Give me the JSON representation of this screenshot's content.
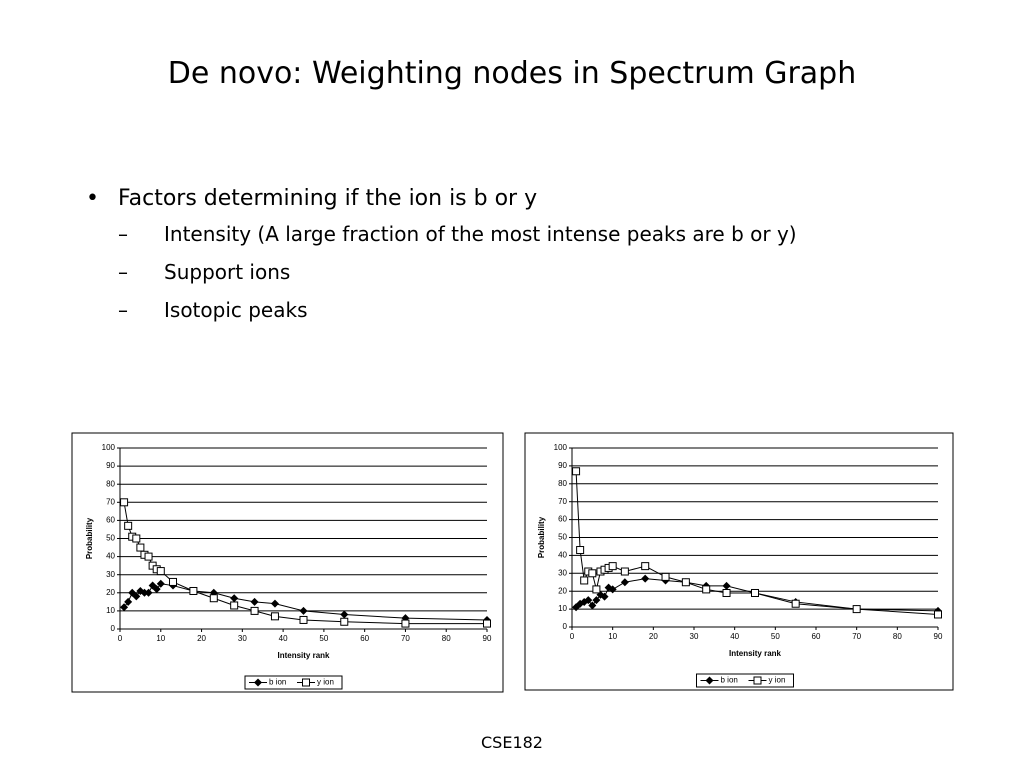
{
  "title": "De novo: Weighting nodes in Spectrum Graph",
  "bullets": [
    {
      "text": "Factors determining if the ion is b or y",
      "subitems": [
        "Intensity (A large fraction of the most intense peaks are b or y)",
        "Support ions",
        "Isotopic peaks"
      ]
    }
  ],
  "footer": "CSE182",
  "chart_data": [
    {
      "type": "line",
      "xlabel": "Intensity rank",
      "ylabel": "Probability",
      "x": [
        1,
        2,
        3,
        4,
        5,
        6,
        7,
        8,
        9,
        10,
        13,
        18,
        23,
        28,
        33,
        38,
        45,
        55,
        70,
        90
      ],
      "series": [
        {
          "name": "b ion",
          "color": "#000000",
          "marker": "diamond",
          "values": [
            12,
            15,
            20,
            18,
            21,
            20,
            20,
            24,
            22,
            25,
            24,
            21,
            20,
            17,
            15,
            14,
            10,
            8,
            6,
            5
          ]
        },
        {
          "name": "y ion",
          "color": "#000000",
          "marker": "square",
          "values": [
            70,
            57,
            51,
            50,
            45,
            41,
            40,
            35,
            33,
            32,
            26,
            21,
            17,
            13,
            10,
            7,
            5,
            4,
            3,
            3
          ]
        }
      ],
      "xlim": [
        0,
        90
      ],
      "xticks": [
        0,
        10,
        20,
        30,
        40,
        50,
        60,
        70,
        80,
        90
      ],
      "ylim": [
        0,
        100
      ],
      "yticks": [
        0,
        10,
        20,
        30,
        40,
        50,
        60,
        70,
        80,
        90,
        100
      ],
      "grid": true,
      "legend": "bottom"
    },
    {
      "type": "line",
      "xlabel": "Intensity rank",
      "ylabel": "Probability",
      "x": [
        1,
        2,
        3,
        4,
        5,
        6,
        7,
        8,
        9,
        10,
        13,
        18,
        23,
        28,
        33,
        38,
        45,
        55,
        70,
        90
      ],
      "series": [
        {
          "name": "b ion",
          "color": "#000000",
          "marker": "diamond",
          "values": [
            11,
            13,
            14,
            15,
            12,
            15,
            18,
            17,
            22,
            21,
            25,
            27,
            26,
            25,
            23,
            23,
            19,
            14,
            10,
            9
          ]
        },
        {
          "name": "y ion",
          "color": "#000000",
          "marker": "square",
          "values": [
            87,
            43,
            26,
            31,
            30,
            21,
            31,
            32,
            33,
            34,
            31,
            34,
            28,
            25,
            21,
            19,
            19,
            13,
            10,
            7
          ]
        }
      ],
      "xlim": [
        0,
        90
      ],
      "xticks": [
        0,
        10,
        20,
        30,
        40,
        50,
        60,
        70,
        80,
        90
      ],
      "ylim": [
        0,
        100
      ],
      "yticks": [
        0,
        10,
        20,
        30,
        40,
        50,
        60,
        70,
        80,
        90,
        100
      ],
      "grid": true,
      "legend": "bottom"
    }
  ]
}
